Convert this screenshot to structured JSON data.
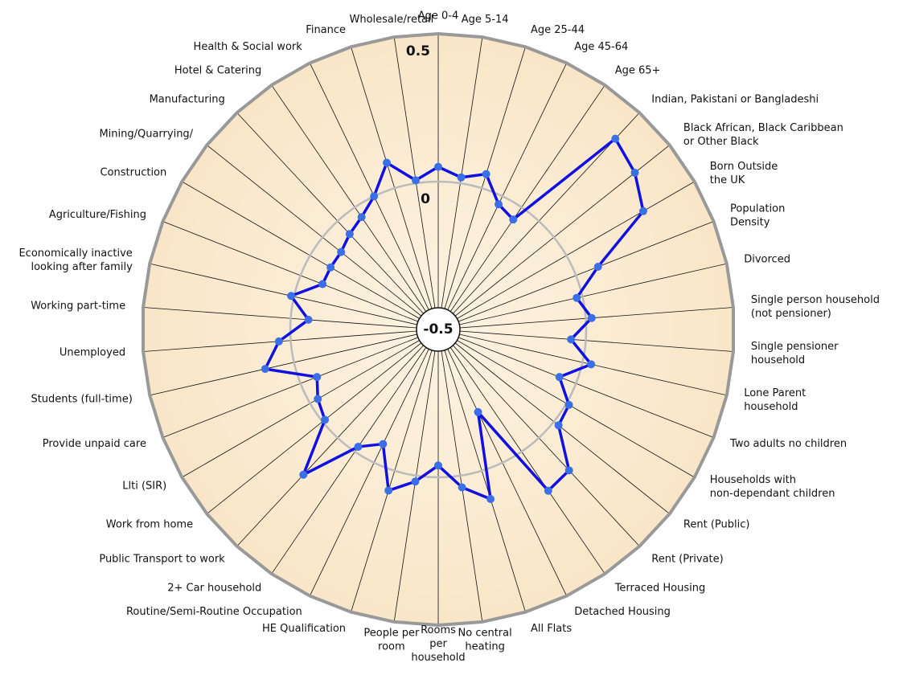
{
  "chart_data": {
    "type": "radar",
    "categories": [
      "Age 0-4",
      "Age 5-14",
      "Age 25-44",
      "Age 45-64",
      "Age 65+",
      "Indian, Pakistani or Bangladeshi",
      "Black African, Black Caribbean\nor Other Black",
      "Born Outside\nthe UK",
      "Population\nDensity",
      "Divorced",
      "Single person household\n(not pensioner)",
      "Single pensioner\nhousehold",
      "Lone Parent\nhousehold",
      "Two adults no children",
      "Households with\nnon-dependant children",
      "Rent (Public)",
      "Rent (Private)",
      "Terraced Housing",
      "Detached Housing",
      "All Flats",
      "No central\nheating",
      "Rooms\nper\nhousehold",
      "People per\nroom",
      "HE Qualification",
      "Routine/Semi-Routine Occupation",
      "2+ Car household",
      "Public Transport to work",
      "Work from home",
      "Llti (SIR)",
      "Provide unpaid care",
      "Students (full-time)",
      "Unemployed",
      "Working part-time",
      "Economically inactive\nlooking after family",
      "Agriculture/Fishing",
      "Construction",
      "Mining/Quarrying/",
      "Manufacturing",
      "Hotel & Catering",
      "Health & Social work",
      "Finance",
      "Wholesale/retail"
    ],
    "series": [
      {
        "color": "#1010e0",
        "values": [
          0.05,
          0.02,
          0.05,
          -0.03,
          -0.05,
          0.38,
          0.35,
          0.3,
          0.08,
          -0.02,
          0.02,
          -0.05,
          0.03,
          -0.06,
          0.01,
          0.02,
          0.15,
          0.16,
          -0.19,
          0.1,
          0.04,
          -0.04,
          0.02,
          0.07,
          -0.07,
          -0.02,
          0.17,
          -0.01,
          -0.03,
          -0.06,
          0.1,
          0.04,
          -0.06,
          0.01,
          -0.08,
          -0.08,
          -0.08,
          -0.06,
          -0.04,
          0.0,
          0.09,
          0.01
        ]
      }
    ],
    "ylim": [
      -0.5,
      0.5
    ],
    "yticks": [
      -0.5,
      0,
      0.5
    ],
    "grid": true
  }
}
